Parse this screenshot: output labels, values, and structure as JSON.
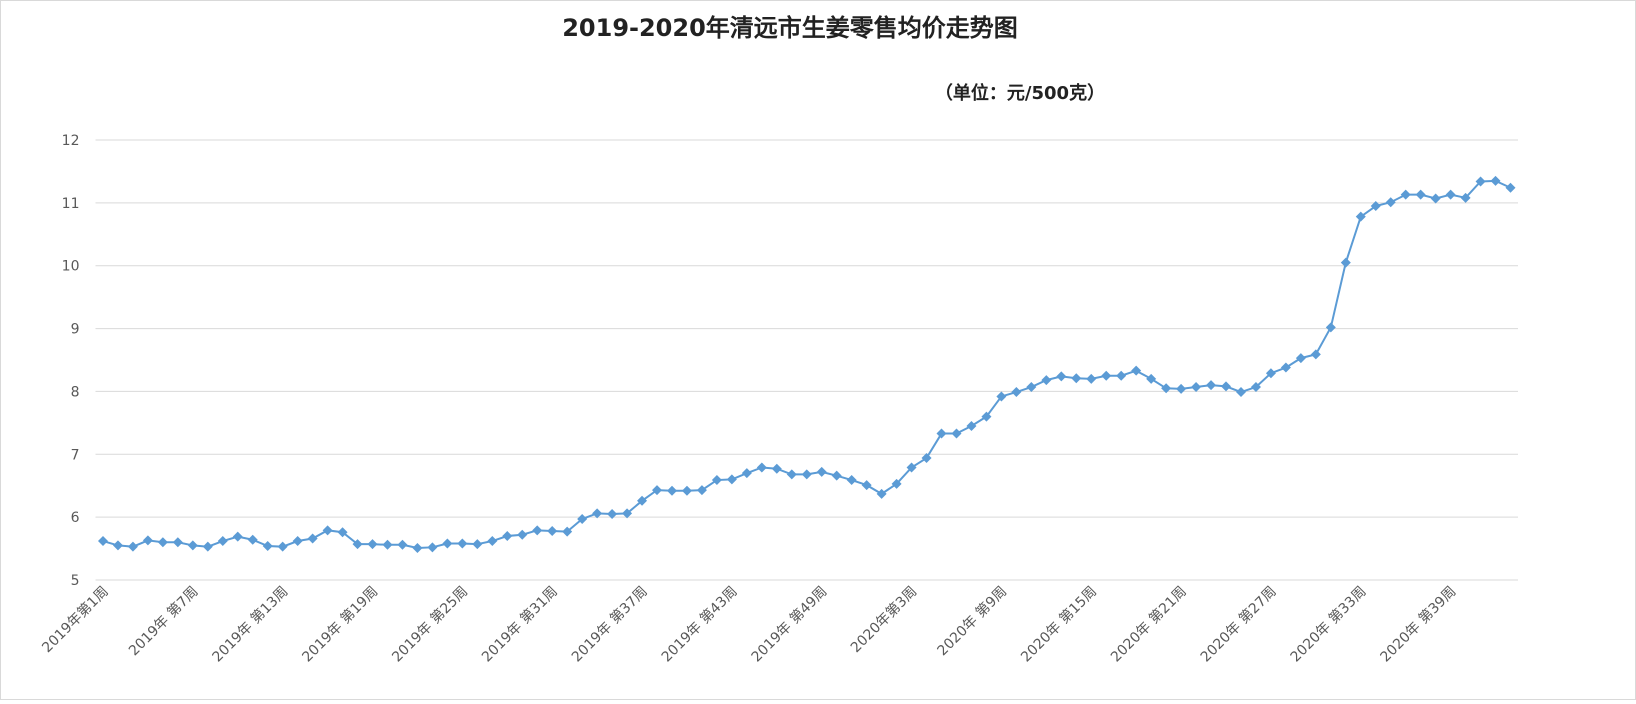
{
  "chart_data": {
    "type": "line",
    "title": "2019-2020年清远市生姜零售均价走势图",
    "subtitle": "（单位：元/500克）",
    "categories": [
      "2019年第1周",
      null,
      null,
      null,
      null,
      null,
      "2019年 第7周",
      null,
      null,
      null,
      null,
      null,
      "2019年 第13周",
      null,
      null,
      null,
      null,
      null,
      "2019年 第19周",
      null,
      null,
      null,
      null,
      null,
      "2019年 第25周",
      null,
      null,
      null,
      null,
      null,
      "2019年 第31周",
      null,
      null,
      null,
      null,
      null,
      "2019年 第37周",
      null,
      null,
      null,
      null,
      null,
      "2019年 第43周",
      null,
      null,
      null,
      null,
      null,
      "2019年 第49周",
      null,
      null,
      null,
      null,
      null,
      "2020年第3周",
      null,
      null,
      null,
      null,
      null,
      "2020年 第9周",
      null,
      null,
      null,
      null,
      null,
      "2020年 第15周",
      null,
      null,
      null,
      null,
      null,
      "2020年 第21周",
      null,
      null,
      null,
      null,
      null,
      "2020年 第27周",
      null,
      null,
      null,
      null,
      null,
      "2020年 第33周",
      null,
      null,
      null,
      null,
      null,
      "2020年 第39周",
      null,
      null,
      null,
      null
    ],
    "series": [
      {
        "color": "#5b9bd5",
        "values": [
          5.62,
          5.55,
          5.53,
          5.63,
          5.6,
          5.6,
          5.55,
          5.53,
          5.62,
          5.69,
          5.64,
          5.54,
          5.53,
          5.62,
          5.66,
          5.79,
          5.76,
          5.57,
          5.57,
          5.56,
          5.56,
          5.51,
          5.52,
          5.58,
          5.58,
          5.57,
          5.62,
          5.7,
          5.72,
          5.79,
          5.78,
          5.77,
          5.97,
          6.06,
          6.05,
          6.06,
          6.26,
          6.43,
          6.42,
          6.42,
          6.43,
          6.59,
          6.6,
          6.7,
          6.79,
          6.77,
          6.68,
          6.68,
          6.72,
          6.66,
          6.59,
          6.51,
          6.37,
          6.53,
          6.79,
          6.94,
          7.33,
          7.33,
          7.45,
          7.6,
          7.92,
          7.99,
          8.07,
          8.18,
          8.24,
          8.21,
          8.2,
          8.25,
          8.25,
          8.33,
          8.2,
          8.05,
          8.04,
          8.07,
          8.1,
          8.08,
          7.99,
          8.07,
          8.29,
          8.38,
          8.53,
          8.59,
          9.02,
          10.05,
          10.78,
          10.95,
          11.01,
          11.13,
          11.13,
          11.07,
          11.13,
          11.08,
          11.34,
          11.35,
          11.24
        ]
      }
    ],
    "ylim": [
      5,
      12
    ],
    "yticks": [
      5,
      6,
      7,
      8,
      9,
      10,
      11,
      12
    ],
    "grid": true
  }
}
